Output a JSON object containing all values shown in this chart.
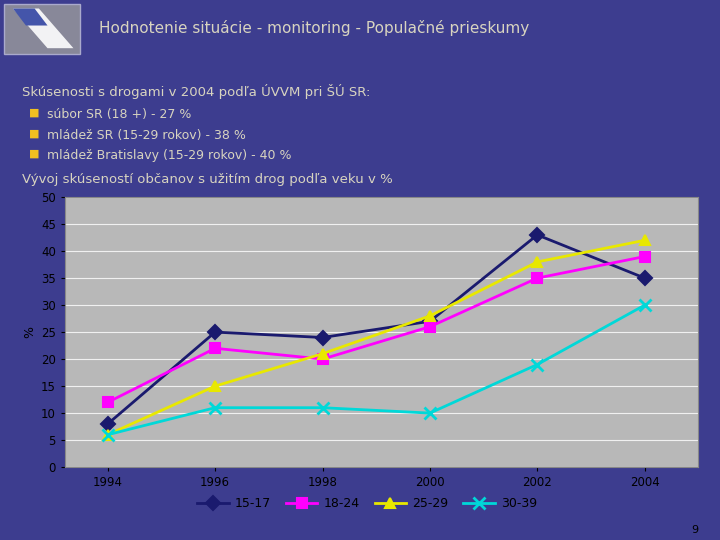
{
  "title": "Hodnotenie situácie - monitoring - Populačné prieskumy",
  "subtitle": "Skúsenosti s drogami v 2004 podľa ÚVVM pri ŠÚ SR:",
  "bullets": [
    "súbor SR (18 +) - 27 %",
    "mládež SR (15-29 rokov) - 38 %",
    "mládež Bratislavy (15-29 rokov) - 40 %"
  ],
  "chart_title": "Vývoj skúseností občanov s užitím drog podľa veku v %",
  "years": [
    1994,
    1996,
    1998,
    2000,
    2002,
    2004
  ],
  "series": {
    "15-17": {
      "values": [
        8,
        25,
        24,
        27,
        43,
        35
      ],
      "color": "#1a1a6e",
      "marker": "D",
      "linestyle": "-"
    },
    "18-24": {
      "values": [
        12,
        22,
        20,
        26,
        35,
        39
      ],
      "color": "#ff00ff",
      "marker": "s",
      "linestyle": "-"
    },
    "25-29": {
      "values": [
        6,
        15,
        21,
        28,
        38,
        42
      ],
      "color": "#e8e800",
      "marker": "^",
      "linestyle": "-"
    },
    "30-39": {
      "values": [
        6,
        11,
        11,
        10,
        19,
        30
      ],
      "color": "#00d8d8",
      "marker": "x",
      "linestyle": "-"
    }
  },
  "ylabel": "%",
  "ylim": [
    0,
    50
  ],
  "yticks": [
    0,
    5,
    10,
    15,
    20,
    25,
    30,
    35,
    40,
    45,
    50
  ],
  "bg_color": "#3d3d8f",
  "chart_bg": "#b8b8b8",
  "title_color": "#d8d4c0",
  "subtitle_color": "#d8d4c0",
  "bullet_color": "#f0c020",
  "text_color": "#d8d4c0",
  "chart_text_color": "#000000"
}
